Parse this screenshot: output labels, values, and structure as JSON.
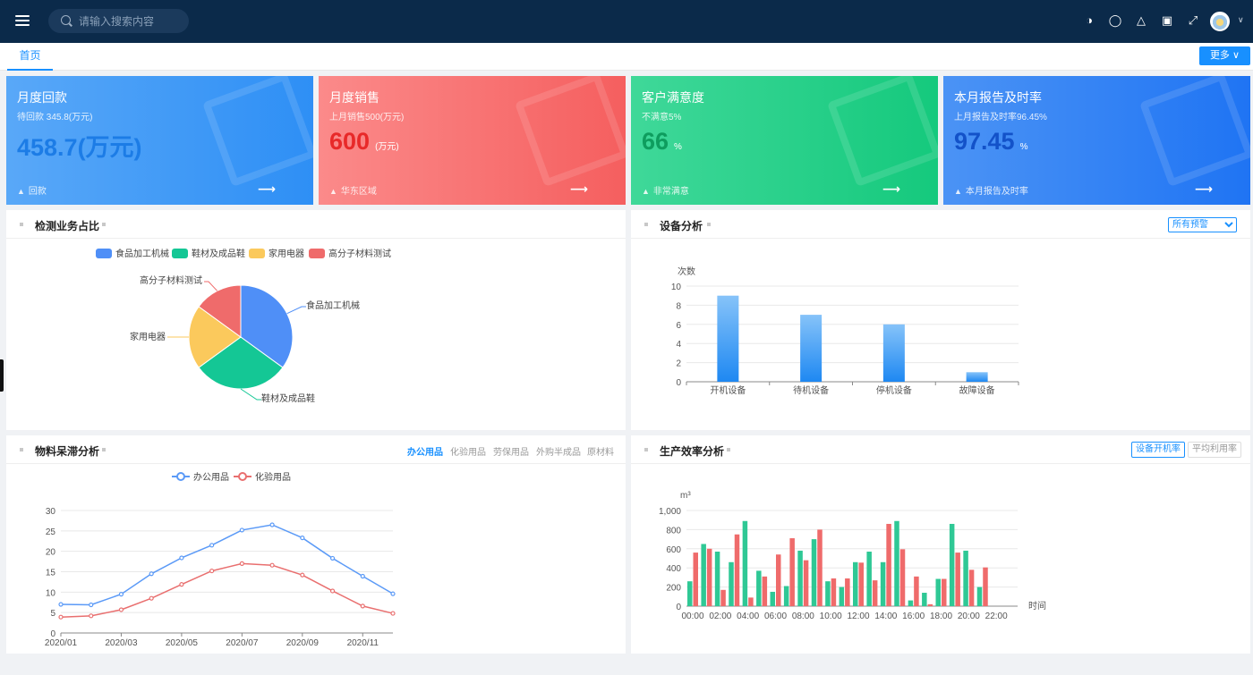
{
  "header": {
    "search_placeholder": "请输入搜索内容",
    "icons": [
      "lock-icon",
      "shirt-icon",
      "bell-icon",
      "translate-icon",
      "fullscreen-icon"
    ]
  },
  "tabs": {
    "home": "首页",
    "more": "更多"
  },
  "cards": [
    {
      "title": "月度回款",
      "sub": "待回款 345.8(万元)",
      "value": "458.7(万元)",
      "unit": "",
      "foot": "回款",
      "colors": [
        "#59a8f8",
        "#2e8ff5"
      ],
      "value_color": "#1c7ce6"
    },
    {
      "title": "月度销售",
      "sub": "上月销售500(万元)",
      "value": "600",
      "unit": "(万元)",
      "foot": "华东区域",
      "colors": [
        "#fb8a8a",
        "#f55f5f"
      ],
      "value_color": "#e82929"
    },
    {
      "title": "客户满意度",
      "sub": "不满意5%",
      "value": "66",
      "unit": "%",
      "foot": "非常满意",
      "colors": [
        "#3fd899",
        "#15c97d"
      ],
      "value_color": "#0e9d5e"
    },
    {
      "title": "本月报告及时率",
      "sub": "上月报告及时率96.45%",
      "value": "97.45",
      "unit": "%",
      "foot": "本月报告及时率",
      "colors": [
        "#4b93f5",
        "#1f74f3"
      ],
      "value_color": "#1352c9"
    }
  ],
  "panels": {
    "pie": {
      "title": "检测业务占比"
    },
    "device": {
      "title": "设备分析",
      "select_value": "所有预警"
    },
    "material": {
      "title": "物料呆滞分析",
      "tabs": [
        "办公用品",
        "化验用品",
        "劳保用品",
        "外购半成品",
        "原材料"
      ]
    },
    "production": {
      "title": "生产效率分析",
      "btn_active": "设备开机率",
      "btn_other": "平均利用率"
    }
  },
  "chart_data": [
    {
      "type": "pie",
      "categories": [
        "食品加工机械",
        "鞋材及成品鞋",
        "家用电器",
        "高分子材料测试"
      ],
      "values": [
        35,
        30,
        20,
        15
      ],
      "colors": [
        "#4f8ff7",
        "#14c795",
        "#fbc95c",
        "#ef6b6b"
      ],
      "legend": "top"
    },
    {
      "type": "bar",
      "ylabel": "次数",
      "categories": [
        "开机设备",
        "待机设备",
        "停机设备",
        "故障设备"
      ],
      "values": [
        9,
        7,
        6,
        1
      ],
      "ylim": [
        0,
        10
      ],
      "yticks": [
        0,
        2,
        4,
        6,
        8,
        10
      ],
      "color": "#3a9cf6"
    },
    {
      "type": "line",
      "x": [
        "2020/01",
        "2020/02",
        "2020/03",
        "2020/04",
        "2020/05",
        "2020/06",
        "2020/07",
        "2020/08",
        "2020/09",
        "2020/10",
        "2020/11",
        "2020/12"
      ],
      "xticks": [
        "2020/01",
        "2020/03",
        "2020/05",
        "2020/07",
        "2020/09",
        "2020/11"
      ],
      "ylim": [
        0,
        30
      ],
      "yticks": [
        0,
        5,
        10,
        15,
        20,
        25,
        30
      ],
      "series": [
        {
          "name": "办公用品",
          "color": "#5b9af7",
          "values": [
            7,
            6.9,
            9.5,
            14.5,
            18.4,
            21.5,
            25.2,
            26.5,
            23.3,
            18.3,
            13.9,
            9.6
          ]
        },
        {
          "name": "化验用品",
          "color": "#e96f6f",
          "values": [
            3.9,
            4.2,
            5.7,
            8.5,
            11.9,
            15.2,
            17,
            16.6,
            14.2,
            10.3,
            6.6,
            4.8
          ]
        }
      ],
      "legend": "top"
    },
    {
      "type": "bar",
      "ylabel": "m³",
      "xlabel": "时间",
      "x": [
        "00:00",
        "01:00",
        "02:00",
        "03:00",
        "04:00",
        "05:00",
        "06:00",
        "07:00",
        "08:00",
        "09:00",
        "10:00",
        "11:00",
        "12:00",
        "13:00",
        "14:00",
        "15:00",
        "16:00",
        "17:00",
        "18:00",
        "19:00",
        "20:00",
        "21:00",
        "22:00",
        "23:00"
      ],
      "xticks": [
        "00:00",
        "02:00",
        "04:00",
        "06:00",
        "08:00",
        "10:00",
        "12:00",
        "14:00",
        "16:00",
        "18:00",
        "20:00",
        "22:00"
      ],
      "yticks": [
        "0",
        "200",
        "400",
        "600",
        "800",
        "1,000"
      ],
      "ylim": [
        0,
        1000
      ],
      "series": [
        {
          "name": "设备开机率",
          "color": "#2fc895",
          "values": [
            260,
            650,
            570,
            460,
            890,
            370,
            150,
            210,
            580,
            700,
            260,
            200,
            460,
            570,
            460,
            890,
            60,
            140,
            285,
            860,
            580,
            200,
            0,
            0
          ]
        },
        {
          "name": "平均利用率",
          "color": "#ef6b6b",
          "values": [
            560,
            600,
            170,
            750,
            90,
            310,
            540,
            710,
            480,
            800,
            290,
            290,
            455,
            270,
            860,
            595,
            310,
            20,
            285,
            560,
            380,
            405,
            0,
            0
          ]
        }
      ]
    }
  ]
}
